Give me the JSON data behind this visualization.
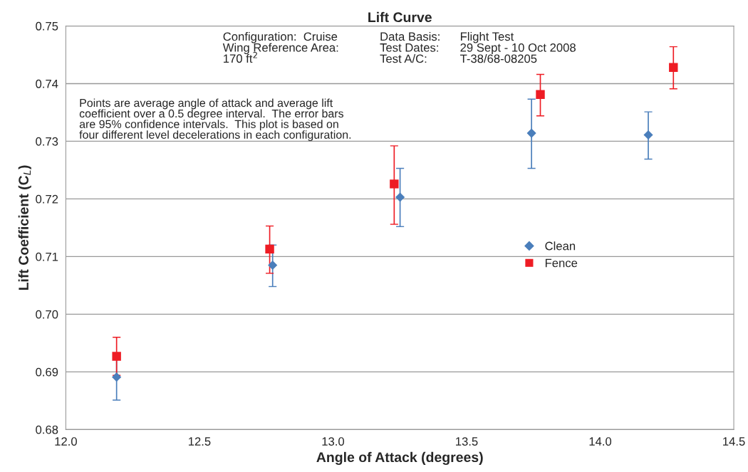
{
  "chart_data": {
    "type": "scatter",
    "title": "Lift Curve",
    "xlabel": "Angle of Attack (degrees)",
    "ylabel": "Lift Coefficient (C$_{L}$)",
    "series": [
      {
        "name": "Clean",
        "color": "#4a7ebb",
        "marker": "diamond",
        "x": [
          12.19,
          12.774,
          13.251,
          13.743,
          14.18
        ],
        "values": [
          0.6891,
          0.7085,
          0.7203,
          0.7314,
          0.7311
        ],
        "errors": [
          [
            0.6851,
            0.6931
          ],
          [
            0.7048,
            0.712
          ],
          [
            0.7152,
            0.7253
          ],
          [
            0.7253,
            0.7373
          ],
          [
            0.7269,
            0.7351
          ]
        ]
      },
      {
        "name": "Fence",
        "color": "#ee1c24",
        "marker": "square",
        "x": [
          12.19,
          12.763,
          13.229,
          13.776,
          14.274
        ],
        "values": [
          0.6927,
          0.7113,
          0.7226,
          0.7381,
          0.7428
        ],
        "errors": [
          [
            0.6894,
            0.696
          ],
          [
            0.7071,
            0.7153
          ],
          [
            0.7156,
            0.7292
          ],
          [
            0.7344,
            0.7416
          ],
          [
            0.7391,
            0.7464
          ]
        ]
      }
    ],
    "xlim": [
      12.0,
      14.5
    ],
    "xticks": [
      {
        "value": 12.0,
        "label": "12.0"
      },
      {
        "value": 12.5,
        "label": "12.5"
      },
      {
        "value": 13.0,
        "label": "13.0"
      },
      {
        "value": 13.5,
        "label": "13.5"
      },
      {
        "value": 14.0,
        "label": "14.0"
      },
      {
        "value": 14.5,
        "label": "14.5"
      }
    ],
    "ylim": [
      0.68,
      0.75
    ],
    "yticks": [
      {
        "value": 0.68,
        "label": "0.68"
      },
      {
        "value": 0.69,
        "label": "0.69"
      },
      {
        "value": 0.7,
        "label": "0.70"
      },
      {
        "value": 0.71,
        "label": "0.71"
      },
      {
        "value": 0.72,
        "label": "0.72"
      },
      {
        "value": 0.73,
        "label": "0.73"
      },
      {
        "value": 0.74,
        "label": "0.74"
      },
      {
        "value": 0.75,
        "label": "0.75"
      }
    ],
    "grid": "y",
    "legend": "right",
    "annotations": [
      "Configuration:  Cruise\nWing Reference Area:\n170 ft$^{2}$",
      "Data Basis:\nTest Dates:\nTest A/C:",
      "Flight Test\n29 Sept - 10 Oct 2008\nT-38/68-08205",
      "Points are average angle of attack and average lift\ncoefficient over a 0.5 degree interval.  The error bars\nare 95% confidence intervals.  This plot is based on\nfour different level decelerations in each configuration."
    ]
  }
}
